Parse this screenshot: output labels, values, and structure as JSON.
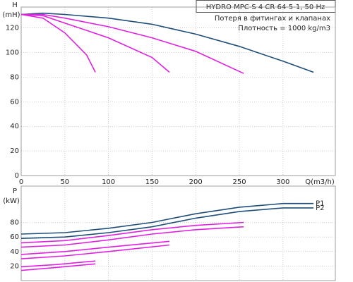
{
  "chart_data": [
    {
      "type": "line",
      "title": "HYDRO MPC-S 4 CR 64-5-1, 50 Hz",
      "annotations": [
        "Потеря в фитингах и клапанах",
        "Плотность = 1000 kg/m3"
      ],
      "y_label": "H",
      "y_unit": "(mH)",
      "x_label": "Q(m3/h)",
      "xlim": [
        0,
        360
      ],
      "xticks": [
        0,
        50,
        100,
        150,
        200,
        250,
        300
      ],
      "ylim": [
        0,
        137
      ],
      "yticks": [
        0,
        20,
        40,
        60,
        80,
        100,
        120
      ],
      "grid": true,
      "series": [
        {
          "color": "#1f4e79",
          "x": [
            0,
            25,
            50,
            100,
            150,
            200,
            250,
            300,
            335
          ],
          "values": [
            131,
            132,
            131,
            128,
            123,
            115,
            105,
            93,
            84
          ]
        },
        {
          "color": "#e020e0",
          "x": [
            0,
            25,
            50,
            100,
            150,
            200,
            255
          ],
          "values": [
            131,
            131,
            128,
            121,
            112,
            101,
            83
          ]
        },
        {
          "color": "#e020e0",
          "x": [
            0,
            25,
            50,
            100,
            150,
            170
          ],
          "values": [
            131,
            130,
            124,
            112,
            96,
            84
          ]
        },
        {
          "color": "#e020e0",
          "x": [
            0,
            25,
            50,
            75,
            85
          ],
          "values": [
            131,
            128,
            116,
            98,
            84
          ]
        }
      ]
    },
    {
      "type": "line",
      "y_label": "P",
      "y_unit": "(kW)",
      "xlim": [
        0,
        360
      ],
      "ylim": [
        0,
        130
      ],
      "yticks": [
        20,
        40,
        60,
        80
      ],
      "grid": true,
      "series": [
        {
          "name": "P1",
          "color": "#1f4e79",
          "x": [
            0,
            50,
            100,
            150,
            200,
            250,
            300,
            335
          ],
          "values": [
            64,
            66,
            72,
            80,
            92,
            101,
            106,
            106
          ]
        },
        {
          "name": "P2",
          "color": "#1f4e79",
          "x": [
            0,
            50,
            100,
            150,
            200,
            250,
            300,
            335
          ],
          "values": [
            58,
            60,
            66,
            74,
            86,
            95,
            100,
            100
          ]
        },
        {
          "color": "#e020e0",
          "x": [
            0,
            50,
            100,
            150,
            200,
            255
          ],
          "values": [
            52,
            55,
            62,
            70,
            76,
            80
          ]
        },
        {
          "color": "#e020e0",
          "x": [
            0,
            50,
            100,
            150,
            200,
            255
          ],
          "values": [
            46,
            49,
            56,
            64,
            70,
            74
          ]
        },
        {
          "color": "#e020e0",
          "x": [
            0,
            50,
            100,
            170
          ],
          "values": [
            36,
            40,
            46,
            54
          ]
        },
        {
          "color": "#e020e0",
          "x": [
            0,
            50,
            100,
            170
          ],
          "values": [
            30,
            34,
            40,
            49
          ]
        },
        {
          "color": "#e020e0",
          "x": [
            0,
            40,
            85
          ],
          "values": [
            19,
            22,
            27
          ]
        },
        {
          "color": "#e020e0",
          "x": [
            0,
            40,
            85
          ],
          "values": [
            14,
            18,
            23
          ]
        }
      ]
    }
  ]
}
